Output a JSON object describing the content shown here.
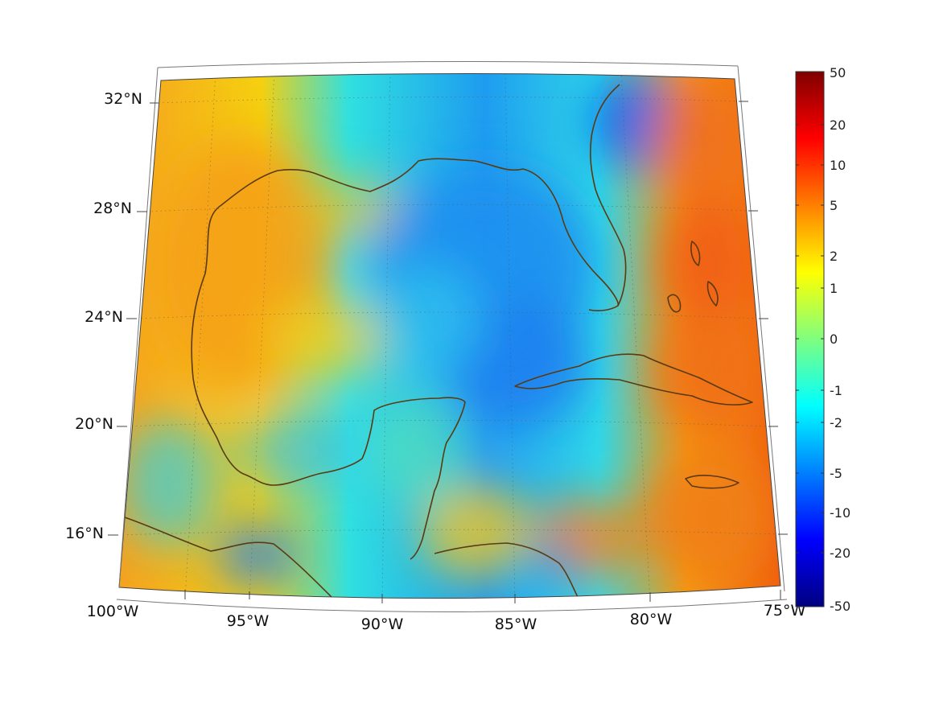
{
  "map": {
    "lon_labels": [
      "100°W",
      "95°W",
      "90°W",
      "85°W",
      "80°W",
      "75°W"
    ],
    "lat_labels": [
      "32°N",
      "28°N",
      "24°N",
      "20°N",
      "16°N"
    ],
    "lon_range": [
      -100,
      -75
    ],
    "lat_range": [
      14,
      33
    ],
    "coastline_color": "#5b3a12",
    "grid": true
  },
  "colorbar": {
    "colormap": "jet",
    "placement": "right",
    "tick_labels": [
      "50",
      "20",
      "10",
      "5",
      "2",
      "1",
      "0",
      "-1",
      "-2",
      "-5",
      "-10",
      "-20",
      "-50"
    ]
  }
}
